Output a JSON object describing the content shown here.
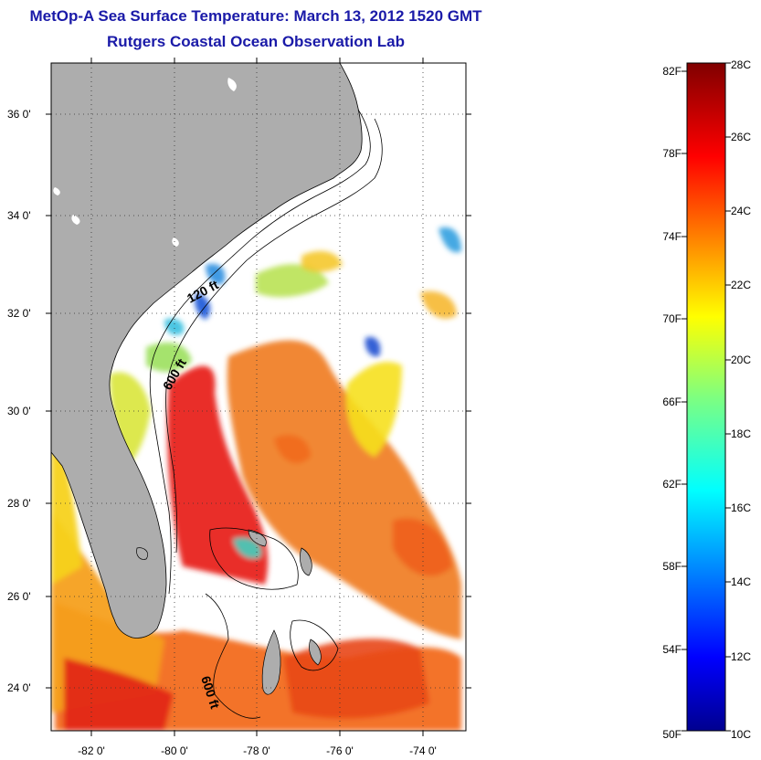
{
  "title": {
    "line1": "MetOp-A Sea Surface Temperature:  March 13, 2012 1520 GMT",
    "line2": "Rutgers Coastal Ocean Observation Lab"
  },
  "map": {
    "lat_labels": [
      "36 0'",
      "34 0'",
      "32 0'",
      "30 0'",
      "28 0'",
      "26 0'",
      "24 0'"
    ],
    "lon_labels": [
      "-82 0'",
      "-80 0'",
      "-78 0'",
      "-76 0'",
      "-74 0'"
    ],
    "depth_labels": [
      "120 ft",
      "600 ft",
      "600 ft"
    ],
    "land_color": "#adadad",
    "grid": true
  },
  "colorbar": {
    "fahrenheit_labels": [
      "82F",
      "78F",
      "74F",
      "70F",
      "66F",
      "62F",
      "58F",
      "54F",
      "50F"
    ],
    "celsius_labels": [
      "28C",
      "26C",
      "24C",
      "22C",
      "20C",
      "18C",
      "16C",
      "14C",
      "12C",
      "10C"
    ],
    "range_c": [
      10,
      28
    ],
    "range_f": [
      50,
      82
    ],
    "colormap": "jet"
  }
}
